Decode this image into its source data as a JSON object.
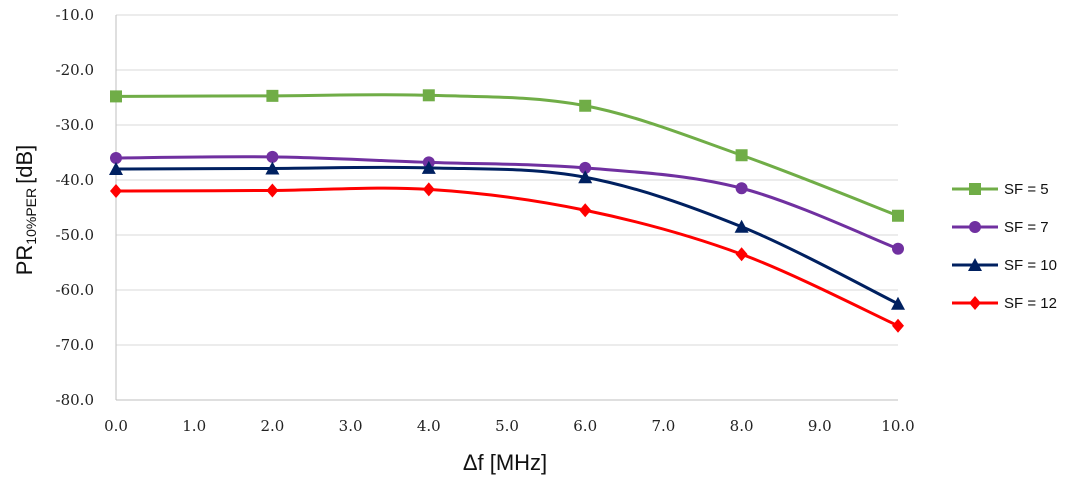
{
  "chart_data": {
    "type": "line",
    "xlabel": "Δf [MHz]",
    "ylabel": {
      "main": "PR",
      "subscript": "10%PER",
      "unit": "[dB]"
    },
    "xlim": [
      0,
      10
    ],
    "ylim": [
      -80,
      -10
    ],
    "xticks": [
      "0.0",
      "1.0",
      "2.0",
      "3.0",
      "4.0",
      "5.0",
      "6.0",
      "7.0",
      "8.0",
      "9.0",
      "10.0"
    ],
    "yticks": [
      "-10.0",
      "-20.0",
      "-30.0",
      "-40.0",
      "-50.0",
      "-60.0",
      "-70.0",
      "-80.0"
    ],
    "grid": true,
    "legend_position": "right",
    "x": [
      0,
      2,
      4,
      6,
      8,
      10
    ],
    "series": [
      {
        "name": "SF = 5",
        "values": [
          -24.8,
          -24.7,
          -24.6,
          -26.5,
          -35.5,
          -46.5
        ],
        "color": "#70ad47",
        "marker": "square"
      },
      {
        "name": "SF = 7",
        "values": [
          -36.0,
          -35.8,
          -36.8,
          -37.8,
          -41.5,
          -52.5
        ],
        "color": "#7030a0",
        "marker": "circle"
      },
      {
        "name": "SF = 10",
        "values": [
          -38.0,
          -37.9,
          -37.8,
          -39.5,
          -48.5,
          -62.5
        ],
        "color": "#002060",
        "marker": "triangle"
      },
      {
        "name": "SF = 12",
        "values": [
          -42.0,
          -41.9,
          -41.7,
          -45.5,
          -53.5,
          -66.5
        ],
        "color": "#ff0000",
        "marker": "diamond"
      }
    ]
  }
}
